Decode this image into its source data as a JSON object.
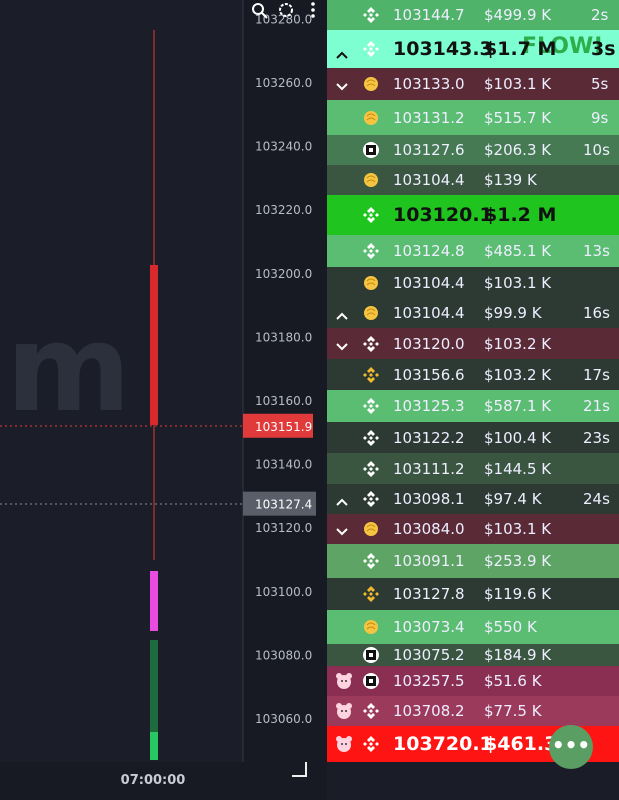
{
  "chart": {
    "watermark": "m",
    "time_label": "07:00:00",
    "price_ticks": [
      "103280.0",
      "103260.0",
      "103240.0",
      "103220.0",
      "103200.0",
      "103180.0",
      "103160.0",
      "103140.0",
      "103120.0",
      "103100.0",
      "103080.0",
      "103060.0"
    ],
    "last_price": {
      "label": "103151.9",
      "color": "#e03a3a"
    },
    "cursor_price": {
      "label": "103127.4",
      "color": "#5a5e68"
    }
  },
  "trades": {
    "flow_badge": "FLOW!",
    "rows": [
      {
        "price": "103144.7",
        "amount": "$499.9 K",
        "age": "2s",
        "color": "#4fb36a"
      },
      {
        "price": "103143.3",
        "amount": "$1.7 M",
        "age": "3s",
        "color": "#7dffd2",
        "arrow": "up",
        "highlight": true
      },
      {
        "price": "103133.0",
        "amount": "$103.1 K",
        "age": "5s",
        "color": "#5a2b37",
        "arrow": "down"
      },
      {
        "price": "103131.2",
        "amount": "$515.7 K",
        "age": "9s",
        "color": "#5bbd72"
      },
      {
        "price": "103127.6",
        "amount": "$206.3 K",
        "age": "10s",
        "color": "#467a52"
      },
      {
        "price": "103104.4",
        "amount": "$139 K",
        "color": "#3a5641"
      },
      {
        "price": "103120.1",
        "amount": "$1.2 M",
        "color": "#1fc41f",
        "highlight": true
      },
      {
        "price": "103124.8",
        "amount": "$485.1 K",
        "age": "13s",
        "color": "#5bbd72"
      },
      {
        "price": "103104.4",
        "amount": "$103.1 K",
        "color": "#2c3a33"
      },
      {
        "price": "103104.4",
        "amount": "$99.9 K",
        "age": "16s",
        "color": "#2c3a33",
        "arrow": "up"
      },
      {
        "price": "103120.0",
        "amount": "$103.2 K",
        "color": "#5a2b37",
        "arrow": "down"
      },
      {
        "price": "103156.6",
        "amount": "$103.2 K",
        "age": "17s",
        "color": "#2c3a33"
      },
      {
        "price": "103125.3",
        "amount": "$587.1 K",
        "age": "21s",
        "color": "#5bbd72"
      },
      {
        "price": "103122.2",
        "amount": "$100.4 K",
        "age": "23s",
        "color": "#2c3a33"
      },
      {
        "price": "103111.2",
        "amount": "$144.5 K",
        "color": "#3a5641"
      },
      {
        "price": "103098.1",
        "amount": "$97.4 K",
        "age": "24s",
        "color": "#2c3a33",
        "arrow": "up"
      },
      {
        "price": "103084.0",
        "amount": "$103.1 K",
        "color": "#5a2b37",
        "arrow": "down"
      },
      {
        "price": "103091.1",
        "amount": "$253.9 K",
        "color": "#5ea565"
      },
      {
        "price": "103127.8",
        "amount": "$119.6 K",
        "color": "#2c3a33"
      },
      {
        "price": "103073.4",
        "amount": "$550 K",
        "color": "#5bbd72"
      },
      {
        "price": "103075.2",
        "amount": "$184.9 K",
        "color": "#3a5641"
      },
      {
        "price": "103257.5",
        "amount": "$51.6 K",
        "color": "#8a2f52"
      },
      {
        "price": "103708.2",
        "amount": "$77.5 K",
        "color": "#9c3a5c"
      },
      {
        "price": "103720.1",
        "amount": "$461.3",
        "color": "#ff1414",
        "highlight": true
      }
    ]
  }
}
